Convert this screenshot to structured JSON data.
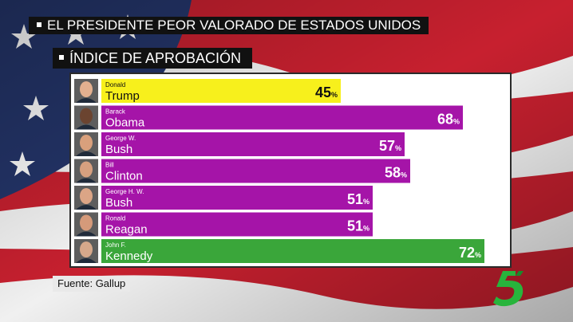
{
  "headline": "EL PRESIDENTE PEOR VALORADO DE ESTADOS UNIDOS",
  "subheadline": "ÍNDICE DE APROBACIÓN",
  "source": "Fuente: Gallup",
  "chart_data": {
    "type": "bar",
    "orientation": "horizontal",
    "title": "ÍNDICE DE APROBACIÓN",
    "unit": "%",
    "xlim": [
      0,
      75
    ],
    "categories": [
      {
        "first": "Donald",
        "last": "Trump"
      },
      {
        "first": "Barack",
        "last": "Obama"
      },
      {
        "first": "George W.",
        "last": "Bush"
      },
      {
        "first": "Bill",
        "last": "Clinton"
      },
      {
        "first": "George H. W.",
        "last": "Bush"
      },
      {
        "first": "Ronald",
        "last": "Reagan"
      },
      {
        "first": "John F.",
        "last": "Kennedy"
      }
    ],
    "values": [
      45,
      68,
      57,
      58,
      51,
      51,
      72
    ],
    "colors": [
      "#f7f01c",
      "#a514a8",
      "#a514a8",
      "#a514a8",
      "#a514a8",
      "#a514a8",
      "#3aa63a"
    ],
    "label_colors": [
      "#111111",
      "#ffffff",
      "#ffffff",
      "#ffffff",
      "#ffffff",
      "#ffffff",
      "#ffffff"
    ]
  },
  "colors": {
    "brand_green": "#28b43c",
    "stripe_red": "#b22234",
    "flag_blue": "#24356a"
  }
}
